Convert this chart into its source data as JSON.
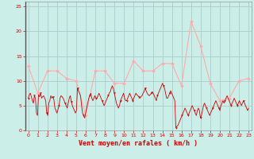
{
  "xlabel": "Vent moyen/en rafales ( km/h )",
  "bg_color": "#cceee8",
  "grid_color": "#aacccc",
  "rafales_color": "#ffaaaa",
  "moyen_color": "#cc0000",
  "ylim": [
    0,
    26
  ],
  "yticks": [
    0,
    5,
    10,
    15,
    20,
    25
  ],
  "xtick_labels": [
    "0",
    "1",
    "2",
    "3",
    "4",
    "5",
    "6",
    "7",
    "8",
    "9",
    "10",
    "11",
    "12",
    "13",
    "14",
    "15",
    "16",
    "17",
    "18",
    "19",
    "20",
    "21",
    "22",
    "23"
  ],
  "rafales": [
    13,
    7.5,
    12,
    12,
    10.5,
    10,
    3,
    12,
    12,
    9.5,
    9.5,
    14,
    12,
    12,
    13.5,
    13.5,
    9,
    22,
    17,
    9.5,
    6,
    6.5,
    10,
    10.5
  ],
  "moyen": [
    6.5,
    7.2,
    7.5,
    6.8,
    6.0,
    5.5,
    7.0,
    6.5,
    3.5,
    3.0,
    7.2,
    6.8,
    7.5,
    6.5,
    6.8,
    7.0,
    6.5,
    6.0,
    3.5,
    3.0,
    5.5,
    6.0,
    7.0,
    6.5,
    6.8,
    6.2,
    4.5,
    4.0,
    3.5,
    4.2,
    5.0,
    6.5,
    7.0,
    6.8,
    6.5,
    6.0,
    5.5,
    5.0,
    4.5,
    5.5,
    6.5,
    7.0,
    5.8,
    5.0,
    4.5,
    4.0,
    3.5,
    4.0,
    8.5,
    8.0,
    7.5,
    7.0,
    5.0,
    3.5,
    3.0,
    2.5,
    3.5,
    4.5,
    5.5,
    6.5,
    7.0,
    7.5,
    6.5,
    6.0,
    6.5,
    7.0,
    6.5,
    6.5,
    7.0,
    7.5,
    7.0,
    6.5,
    6.0,
    5.5,
    5.0,
    5.5,
    6.0,
    6.5,
    7.0,
    7.5,
    7.8,
    8.5,
    9.0,
    8.5,
    7.5,
    6.5,
    5.5,
    5.0,
    4.5,
    5.0,
    6.0,
    6.5,
    7.0,
    7.5,
    6.5,
    6.0,
    6.0,
    6.5,
    7.0,
    7.5,
    7.0,
    6.5,
    6.0,
    6.5,
    7.0,
    7.5,
    7.2,
    7.0,
    6.8,
    6.5,
    6.8,
    7.0,
    7.5,
    7.8,
    8.5,
    8.0,
    7.5,
    7.2,
    7.0,
    7.2,
    7.5,
    7.8,
    7.5,
    7.0,
    6.5,
    6.0,
    7.0,
    7.5,
    8.0,
    8.5,
    9.0,
    9.5,
    9.0,
    8.5,
    7.5,
    6.5,
    6.5,
    7.0,
    7.5,
    8.0,
    7.5,
    7.0,
    6.5,
    6.0,
    0.5,
    0.8,
    1.0,
    1.5,
    2.0,
    2.5,
    3.0,
    3.5,
    4.0,
    4.5,
    4.0,
    3.5,
    3.0,
    3.5,
    4.0,
    4.5,
    5.0,
    4.5,
    4.0,
    3.5,
    3.0,
    4.0,
    4.5,
    4.0,
    2.5,
    3.0,
    4.0,
    5.0,
    5.5,
    5.0,
    4.5,
    4.0,
    3.5,
    3.0,
    3.5,
    4.0,
    4.5,
    5.0,
    5.5,
    6.0,
    5.5,
    5.0,
    4.5,
    4.0,
    5.0,
    5.5,
    6.0,
    5.5,
    6.0,
    6.5,
    7.0,
    6.5,
    6.0,
    5.5,
    5.0,
    5.5,
    6.0,
    6.5,
    6.0,
    5.5,
    5.0,
    5.5,
    6.0,
    5.5,
    5.0,
    5.5,
    6.0,
    5.5,
    5.0,
    4.5,
    4.0,
    4.5
  ]
}
